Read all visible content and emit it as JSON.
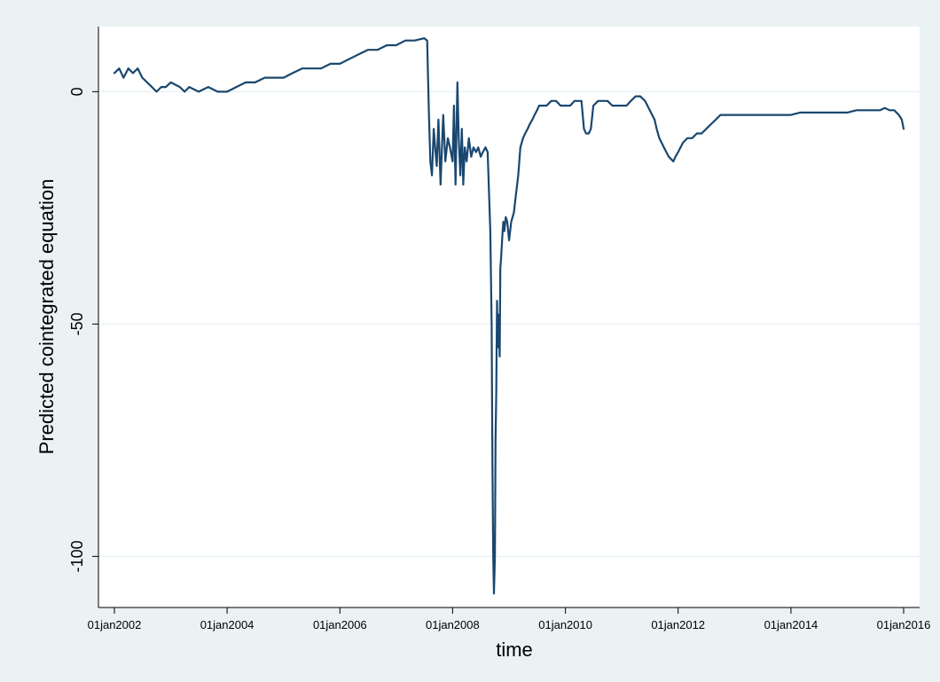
{
  "chart_data": {
    "type": "line",
    "title": "",
    "xlabel": "time",
    "ylabel": "Predicted cointegrated equation",
    "xlim": [
      "2002-01-01",
      "2016-01-01"
    ],
    "ylim": [
      -111,
      14
    ],
    "grid": true,
    "colors": {
      "background": "#eaf2f3",
      "plot_background": "#ffffff",
      "grid": "#eaf2f3",
      "line": "#1a476f"
    },
    "y_ticks": [
      {
        "value": 0,
        "label": "0"
      },
      {
        "value": -50,
        "label": "-50"
      },
      {
        "value": -100,
        "label": "-100"
      }
    ],
    "x_ticks": [
      {
        "value": "2002-01-01",
        "label": "01jan2002"
      },
      {
        "value": "2004-01-01",
        "label": "01jan2004"
      },
      {
        "value": "2006-01-01",
        "label": "01jan2006"
      },
      {
        "value": "2008-01-01",
        "label": "01jan2008"
      },
      {
        "value": "2010-01-01",
        "label": "01jan2010"
      },
      {
        "value": "2012-01-01",
        "label": "01jan2012"
      },
      {
        "value": "2014-01-01",
        "label": "01jan2014"
      },
      {
        "value": "2016-01-01",
        "label": "01jan2016"
      }
    ],
    "series": [
      {
        "x": [
          "2002-01-01",
          "2002-02-01",
          "2002-03-01",
          "2002-04-01",
          "2002-05-01",
          "2002-06-01",
          "2002-07-01",
          "2002-08-01",
          "2002-09-01",
          "2002-10-01",
          "2002-11-01",
          "2002-12-01",
          "2003-01-01",
          "2003-03-01",
          "2003-04-01",
          "2003-05-01",
          "2003-07-01",
          "2003-09-01",
          "2003-11-01",
          "2004-01-01",
          "2004-03-01",
          "2004-05-01",
          "2004-07-01",
          "2004-09-01",
          "2004-11-01",
          "2005-01-01",
          "2005-03-01",
          "2005-05-01",
          "2005-07-01",
          "2005-09-01",
          "2005-11-01",
          "2006-01-01",
          "2006-03-01",
          "2006-05-01",
          "2006-07-01",
          "2006-09-01",
          "2006-11-01",
          "2007-01-01",
          "2007-03-01",
          "2007-05-01",
          "2007-07-01",
          "2007-07-20",
          "2007-08-01",
          "2007-08-10",
          "2007-08-20",
          "2007-09-01",
          "2007-09-10",
          "2007-09-20",
          "2007-10-01",
          "2007-10-15",
          "2007-11-01",
          "2007-11-15",
          "2007-12-01",
          "2007-12-15",
          "2008-01-01",
          "2008-01-10",
          "2008-01-20",
          "2008-02-01",
          "2008-02-10",
          "2008-02-20",
          "2008-03-01",
          "2008-03-10",
          "2008-03-20",
          "2008-04-01",
          "2008-04-15",
          "2008-05-01",
          "2008-05-15",
          "2008-06-01",
          "2008-06-15",
          "2008-07-01",
          "2008-07-15",
          "2008-08-01",
          "2008-08-15",
          "2008-09-01",
          "2008-09-10",
          "2008-09-15",
          "2008-09-20",
          "2008-09-25",
          "2008-10-01",
          "2008-10-05",
          "2008-10-10",
          "2008-10-15",
          "2008-10-20",
          "2008-10-25",
          "2008-11-01",
          "2008-11-05",
          "2008-11-10",
          "2008-11-15",
          "2008-11-20",
          "2008-11-25",
          "2008-12-01",
          "2008-12-10",
          "2008-12-20",
          "2009-01-01",
          "2009-01-15",
          "2009-02-01",
          "2009-02-15",
          "2009-03-01",
          "2009-03-15",
          "2009-04-01",
          "2009-04-15",
          "2009-05-01",
          "2009-05-15",
          "2009-06-01",
          "2009-06-15",
          "2009-07-01",
          "2009-07-15",
          "2009-08-01",
          "2009-09-01",
          "2009-10-01",
          "2009-11-01",
          "2009-12-01",
          "2010-01-01",
          "2010-02-01",
          "2010-03-01",
          "2010-04-01",
          "2010-04-15",
          "2010-05-01",
          "2010-05-15",
          "2010-06-01",
          "2010-06-15",
          "2010-07-01",
          "2010-08-01",
          "2010-09-01",
          "2010-10-01",
          "2010-11-01",
          "2010-12-01",
          "2011-01-01",
          "2011-02-01",
          "2011-03-01",
          "2011-04-01",
          "2011-05-01",
          "2011-06-01",
          "2011-07-01",
          "2011-08-01",
          "2011-08-15",
          "2011-09-01",
          "2011-10-01",
          "2011-11-01",
          "2011-12-01",
          "2011-12-15",
          "2012-01-01",
          "2012-02-01",
          "2012-03-01",
          "2012-04-01",
          "2012-05-01",
          "2012-06-01",
          "2012-07-01",
          "2012-08-01",
          "2012-09-01",
          "2012-10-01",
          "2012-11-01",
          "2012-12-01",
          "2013-01-01",
          "2013-03-01",
          "2013-05-01",
          "2013-07-01",
          "2013-09-01",
          "2013-11-01",
          "2014-01-01",
          "2014-03-01",
          "2014-05-01",
          "2014-07-01",
          "2014-09-01",
          "2014-11-01",
          "2015-01-01",
          "2015-03-01",
          "2015-05-01",
          "2015-07-01",
          "2015-08-01",
          "2015-09-01",
          "2015-10-01",
          "2015-11-01",
          "2015-12-01",
          "2015-12-20",
          "2016-01-01"
        ],
        "y": [
          4,
          5,
          3,
          5,
          4,
          5,
          3,
          2,
          1,
          0,
          1,
          1,
          2,
          1,
          0,
          1,
          0,
          1,
          0,
          0,
          1,
          2,
          2,
          3,
          3,
          3,
          4,
          5,
          5,
          5,
          6,
          6,
          7,
          8,
          9,
          9,
          10,
          10,
          11,
          11,
          11.5,
          11,
          -5,
          -15,
          -18,
          -8,
          -12,
          -16,
          -6,
          -20,
          -5,
          -15,
          -10,
          -12,
          -15,
          -3,
          -20,
          2,
          -10,
          -18,
          -8,
          -20,
          -12,
          -15,
          -10,
          -14,
          -12,
          -13,
          -12,
          -14,
          -13,
          -12,
          -13,
          -30,
          -50,
          -80,
          -100,
          -108,
          -100,
          -75,
          -65,
          -45,
          -55,
          -48,
          -57,
          -38,
          -36,
          -33,
          -30,
          -28,
          -30,
          -27,
          -28,
          -32,
          -28,
          -26,
          -22,
          -18,
          -12,
          -10,
          -9,
          -8,
          -7,
          -6,
          -5,
          -4,
          -3,
          -3,
          -3,
          -2,
          -2,
          -3,
          -3,
          -3,
          -2,
          -2,
          -2,
          -8,
          -9,
          -9,
          -8,
          -3,
          -2,
          -2,
          -2,
          -3,
          -3,
          -3,
          -3,
          -2,
          -1,
          -1,
          -2,
          -4,
          -6,
          -8,
          -10,
          -12,
          -14,
          -15,
          -14,
          -13,
          -11,
          -10,
          -10,
          -9,
          -9,
          -8,
          -7,
          -6,
          -5,
          -5,
          -5,
          -5,
          -5,
          -5,
          -5,
          -5,
          -5,
          -5,
          -4.5,
          -4.5,
          -4.5,
          -4.5,
          -4.5,
          -4.5,
          -4,
          -4,
          -4,
          -4,
          -3.5,
          -4,
          -4,
          -5,
          -6,
          -8
        ]
      }
    ]
  }
}
